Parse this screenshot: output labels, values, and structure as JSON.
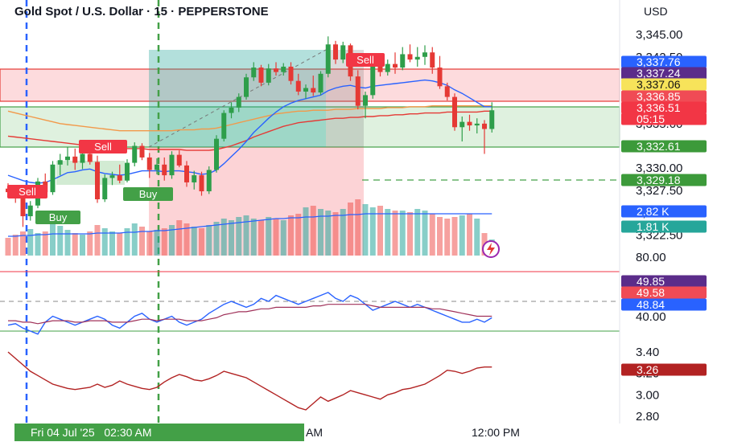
{
  "header": {
    "title": "Gold Spot / U.S. Dollar · 15 · PEPPERSTONE",
    "currency": "USD"
  },
  "chart_data": [
    {
      "type": "candlestick",
      "title": "Gold Spot / U.S. Dollar · 15 · PEPPERSTONE",
      "ylim": [
        3320.0,
        3346.0
      ],
      "y_ticks": [
        "3,345.00",
        "3,342.50",
        "3,340.00",
        "3,337.50",
        "3,335.00",
        "3,332.50",
        "3,330.00",
        "3,327.50",
        "3,325.00",
        "3,322.50"
      ],
      "candles": [
        {
          "o": 3327.7,
          "h": 3328.3,
          "l": 3326.9,
          "c": 3327.3
        },
        {
          "o": 3327.3,
          "h": 3328.0,
          "l": 3326.1,
          "c": 3326.8
        },
        {
          "o": 3326.8,
          "h": 3327.6,
          "l": 3323.4,
          "c": 3324.6
        },
        {
          "o": 3324.6,
          "h": 3326.3,
          "l": 3324.1,
          "c": 3325.8
        },
        {
          "o": 3325.8,
          "h": 3328.9,
          "l": 3325.5,
          "c": 3328.5
        },
        {
          "o": 3328.5,
          "h": 3329.4,
          "l": 3326.9,
          "c": 3327.3
        },
        {
          "o": 3327.3,
          "h": 3330.8,
          "l": 3327.0,
          "c": 3330.4
        },
        {
          "o": 3330.4,
          "h": 3331.6,
          "l": 3329.2,
          "c": 3330.9
        },
        {
          "o": 3330.9,
          "h": 3332.4,
          "l": 3330.3,
          "c": 3331.3
        },
        {
          "o": 3331.3,
          "h": 3332.2,
          "l": 3329.8,
          "c": 3330.6
        },
        {
          "o": 3330.6,
          "h": 3331.8,
          "l": 3329.9,
          "c": 3331.6
        },
        {
          "o": 3331.6,
          "h": 3331.9,
          "l": 3330.4,
          "c": 3330.7
        },
        {
          "o": 3330.7,
          "h": 3331.4,
          "l": 3326.1,
          "c": 3326.5
        },
        {
          "o": 3326.5,
          "h": 3329.3,
          "l": 3326.2,
          "c": 3328.9
        },
        {
          "o": 3328.9,
          "h": 3329.6,
          "l": 3328.1,
          "c": 3329.2
        },
        {
          "o": 3329.2,
          "h": 3330.4,
          "l": 3328.3,
          "c": 3328.6
        },
        {
          "o": 3328.6,
          "h": 3331.0,
          "l": 3328.4,
          "c": 3330.6
        },
        {
          "o": 3330.6,
          "h": 3332.9,
          "l": 3330.2,
          "c": 3332.5
        },
        {
          "o": 3332.5,
          "h": 3332.8,
          "l": 3330.9,
          "c": 3331.2
        },
        {
          "o": 3331.2,
          "h": 3331.7,
          "l": 3328.9,
          "c": 3329.8
        },
        {
          "o": 3329.8,
          "h": 3331.1,
          "l": 3329.3,
          "c": 3330.4
        },
        {
          "o": 3330.4,
          "h": 3331.2,
          "l": 3328.6,
          "c": 3329.2
        },
        {
          "o": 3329.2,
          "h": 3331.9,
          "l": 3328.8,
          "c": 3331.5
        },
        {
          "o": 3331.5,
          "h": 3332.0,
          "l": 3330.1,
          "c": 3330.3
        },
        {
          "o": 3330.3,
          "h": 3330.8,
          "l": 3327.9,
          "c": 3328.4
        },
        {
          "o": 3328.4,
          "h": 3329.7,
          "l": 3327.6,
          "c": 3329.2
        },
        {
          "o": 3329.2,
          "h": 3329.6,
          "l": 3326.9,
          "c": 3327.4
        },
        {
          "o": 3327.4,
          "h": 3330.2,
          "l": 3327.1,
          "c": 3329.8
        },
        {
          "o": 3329.8,
          "h": 3333.7,
          "l": 3329.5,
          "c": 3333.3
        },
        {
          "o": 3333.3,
          "h": 3336.5,
          "l": 3333.0,
          "c": 3336.2
        },
        {
          "o": 3336.2,
          "h": 3337.4,
          "l": 3335.6,
          "c": 3336.8
        },
        {
          "o": 3336.8,
          "h": 3338.4,
          "l": 3336.3,
          "c": 3338.0
        },
        {
          "o": 3338.0,
          "h": 3340.6,
          "l": 3337.7,
          "c": 3340.2
        },
        {
          "o": 3340.2,
          "h": 3341.9,
          "l": 3339.8,
          "c": 3341.3
        },
        {
          "o": 3341.3,
          "h": 3341.6,
          "l": 3339.2,
          "c": 3339.6
        },
        {
          "o": 3339.6,
          "h": 3341.7,
          "l": 3339.3,
          "c": 3341.2
        },
        {
          "o": 3341.2,
          "h": 3341.9,
          "l": 3340.4,
          "c": 3340.8
        },
        {
          "o": 3340.8,
          "h": 3341.8,
          "l": 3340.4,
          "c": 3341.4
        },
        {
          "o": 3341.4,
          "h": 3341.9,
          "l": 3339.4,
          "c": 3339.8
        },
        {
          "o": 3339.8,
          "h": 3340.6,
          "l": 3338.2,
          "c": 3338.6
        },
        {
          "o": 3338.6,
          "h": 3339.4,
          "l": 3337.8,
          "c": 3339.0
        },
        {
          "o": 3339.0,
          "h": 3340.4,
          "l": 3338.1,
          "c": 3338.5
        },
        {
          "o": 3338.5,
          "h": 3340.9,
          "l": 3338.2,
          "c": 3340.6
        },
        {
          "o": 3340.6,
          "h": 3344.8,
          "l": 3340.2,
          "c": 3343.9
        },
        {
          "o": 3343.9,
          "h": 3344.3,
          "l": 3341.7,
          "c": 3342.2
        },
        {
          "o": 3342.2,
          "h": 3344.2,
          "l": 3341.8,
          "c": 3343.8
        },
        {
          "o": 3343.8,
          "h": 3344.0,
          "l": 3339.8,
          "c": 3340.3
        },
        {
          "o": 3340.3,
          "h": 3341.0,
          "l": 3336.6,
          "c": 3337.0
        },
        {
          "o": 3337.0,
          "h": 3338.6,
          "l": 3335.6,
          "c": 3338.2
        },
        {
          "o": 3338.2,
          "h": 3342.4,
          "l": 3337.8,
          "c": 3342.0
        },
        {
          "o": 3342.0,
          "h": 3342.6,
          "l": 3340.3,
          "c": 3340.8
        },
        {
          "o": 3340.8,
          "h": 3342.2,
          "l": 3340.4,
          "c": 3341.7
        },
        {
          "o": 3341.7,
          "h": 3343.0,
          "l": 3340.6,
          "c": 3341.3
        },
        {
          "o": 3341.3,
          "h": 3343.6,
          "l": 3341.0,
          "c": 3342.8
        },
        {
          "o": 3342.8,
          "h": 3343.9,
          "l": 3341.9,
          "c": 3342.2
        },
        {
          "o": 3342.2,
          "h": 3343.6,
          "l": 3341.4,
          "c": 3342.5
        },
        {
          "o": 3342.5,
          "h": 3343.8,
          "l": 3341.6,
          "c": 3343.0
        },
        {
          "o": 3343.0,
          "h": 3343.6,
          "l": 3340.6,
          "c": 3341.3
        },
        {
          "o": 3341.3,
          "h": 3342.6,
          "l": 3338.9,
          "c": 3339.2
        },
        {
          "o": 3339.2,
          "h": 3339.6,
          "l": 3337.6,
          "c": 3338.0
        },
        {
          "o": 3338.0,
          "h": 3338.4,
          "l": 3334.2,
          "c": 3334.6
        },
        {
          "o": 3334.6,
          "h": 3335.8,
          "l": 3333.0,
          "c": 3335.2
        },
        {
          "o": 3335.2,
          "h": 3336.0,
          "l": 3334.2,
          "c": 3334.8
        },
        {
          "o": 3334.8,
          "h": 3335.6,
          "l": 3333.9,
          "c": 3335.0
        },
        {
          "o": 3335.0,
          "h": 3335.4,
          "l": 3331.6,
          "c": 3334.4
        },
        {
          "o": 3334.4,
          "h": 3337.4,
          "l": 3334.0,
          "c": 3336.5
        }
      ],
      "ema_slow": [
        3333.6,
        3333.5,
        3333.4,
        3333.3,
        3333.2,
        3333.1,
        3333.0,
        3332.9,
        3332.8,
        3332.7,
        3332.6,
        3332.5,
        3332.4,
        3332.3,
        3332.3,
        3332.2,
        3332.2,
        3332.2,
        3332.2,
        3332.1,
        3332.1,
        3332.1,
        3332.1,
        3332.1,
        3332.0,
        3332.0,
        3332.0,
        3332.0,
        3332.1,
        3332.3,
        3332.5,
        3332.8,
        3333.1,
        3333.5,
        3333.8,
        3334.1,
        3334.4,
        3334.7,
        3334.9,
        3335.1,
        3335.2,
        3335.3,
        3335.4,
        3335.5,
        3335.6,
        3335.6,
        3335.7,
        3335.7,
        3335.8,
        3335.8,
        3335.9,
        3335.9,
        3336.0,
        3336.0,
        3336.1,
        3336.1,
        3336.2,
        3336.2,
        3336.2,
        3336.3,
        3336.3,
        3336.3,
        3336.3,
        3336.3,
        3336.4,
        3336.4
      ],
      "ma_mid": [
        3336.4,
        3336.2,
        3336.0,
        3335.8,
        3335.6,
        3335.4,
        3335.2,
        3335.0,
        3334.9,
        3334.8,
        3334.7,
        3334.6,
        3334.5,
        3334.4,
        3334.3,
        3334.2,
        3334.2,
        3334.2,
        3334.2,
        3334.2,
        3334.2,
        3334.2,
        3334.2,
        3334.3,
        3334.3,
        3334.3,
        3334.4,
        3334.4,
        3334.5,
        3334.7,
        3334.9,
        3335.1,
        3335.3,
        3335.5,
        3335.7,
        3335.9,
        3336.1,
        3336.2,
        3336.3,
        3336.4,
        3336.4,
        3336.5,
        3336.5,
        3336.5,
        3336.6,
        3336.6,
        3336.6,
        3336.7,
        3336.7,
        3336.7,
        3336.7,
        3336.8,
        3336.8,
        3336.8,
        3336.9,
        3336.9,
        3336.9,
        3337.0,
        3337.0,
        3337.0,
        3337.0,
        3337.0,
        3337.0,
        3337.0,
        3337.0,
        3337.0
      ],
      "ema_fast": [
        3329.2,
        3328.9,
        3328.6,
        3328.4,
        3328.3,
        3328.4,
        3328.7,
        3329.1,
        3329.5,
        3329.6,
        3329.8,
        3329.9,
        3329.6,
        3329.4,
        3329.3,
        3329.2,
        3329.3,
        3329.5,
        3329.7,
        3329.7,
        3329.7,
        3329.6,
        3329.7,
        3329.7,
        3329.6,
        3329.5,
        3329.3,
        3329.4,
        3329.8,
        3330.5,
        3331.3,
        3332.1,
        3333.0,
        3334.0,
        3334.8,
        3335.6,
        3336.3,
        3336.9,
        3337.3,
        3337.6,
        3337.8,
        3338.0,
        3338.2,
        3338.7,
        3339.0,
        3339.2,
        3339.3,
        3339.1,
        3339.0,
        3339.2,
        3339.3,
        3339.4,
        3339.5,
        3339.6,
        3339.7,
        3339.8,
        3339.9,
        3339.8,
        3339.6,
        3339.3,
        3338.8,
        3338.4,
        3337.9,
        3337.4,
        3336.9,
        3336.9
      ]
    },
    {
      "type": "bar",
      "name": "volume",
      "values": [
        22,
        26,
        30,
        33,
        28,
        30,
        40,
        37,
        32,
        28,
        26,
        30,
        38,
        34,
        30,
        28,
        34,
        40,
        36,
        30,
        32,
        34,
        38,
        44,
        40,
        36,
        34,
        38,
        42,
        46,
        44,
        48,
        50,
        46,
        44,
        48,
        46,
        44,
        50,
        52,
        60,
        62,
        58,
        56,
        54,
        58,
        66,
        70,
        64,
        60,
        62,
        58,
        56,
        56,
        54,
        58,
        56,
        52,
        48,
        46,
        48,
        50,
        52,
        46,
        28,
        20
      ],
      "ma": [
        24,
        24,
        25,
        25,
        26,
        26,
        27,
        27,
        27,
        27,
        27,
        27,
        28,
        28,
        28,
        28,
        29,
        29,
        30,
        30,
        31,
        31,
        32,
        33,
        34,
        35,
        36,
        37,
        38,
        39,
        40,
        41,
        42,
        43,
        44,
        45,
        46,
        46,
        47,
        47,
        48,
        48,
        49,
        49,
        50,
        50,
        51,
        51,
        52,
        52,
        52,
        52,
        52,
        52,
        52,
        52,
        52,
        52,
        52,
        52,
        52,
        52,
        52,
        52,
        52,
        52
      ]
    },
    {
      "type": "line",
      "name": "oscillator",
      "y_ticks": [
        "80.00",
        "40.00"
      ],
      "series": [
        {
          "values": [
            44,
            45,
            42,
            40,
            38,
            46,
            50,
            48,
            46,
            44,
            46,
            48,
            50,
            48,
            44,
            42,
            46,
            50,
            52,
            48,
            46,
            48,
            50,
            46,
            44,
            46,
            48,
            52,
            55,
            58,
            60,
            58,
            56,
            58,
            62,
            60,
            64,
            62,
            60,
            58,
            60,
            62,
            64,
            66,
            62,
            60,
            64,
            62,
            58,
            54,
            56,
            58,
            60,
            58,
            56,
            58,
            56,
            54,
            52,
            50,
            48,
            46,
            46,
            48,
            46,
            49
          ]
        },
        {
          "values": [
            47,
            47,
            46,
            46,
            45,
            46,
            47,
            47,
            47,
            46,
            46,
            47,
            47,
            47,
            46,
            46,
            46,
            47,
            48,
            48,
            47,
            48,
            48,
            48,
            47,
            47,
            47,
            48,
            49,
            51,
            52,
            53,
            53,
            54,
            55,
            55,
            56,
            56,
            56,
            56,
            56,
            57,
            57,
            58,
            58,
            58,
            58,
            58,
            58,
            57,
            56,
            56,
            56,
            56,
            56,
            56,
            56,
            55,
            55,
            54,
            53,
            52,
            51,
            50,
            50,
            50
          ]
        }
      ]
    },
    {
      "type": "line",
      "name": "lower_indicator",
      "y_ticks": [
        "3.40",
        "3.20",
        "3.00",
        "2.80"
      ],
      "series": [
        {
          "values": [
            3.4,
            3.34,
            3.28,
            3.22,
            3.18,
            3.14,
            3.1,
            3.08,
            3.06,
            3.05,
            3.06,
            3.07,
            3.1,
            3.07,
            3.09,
            3.13,
            3.1,
            3.08,
            3.06,
            3.05,
            3.07,
            3.12,
            3.16,
            3.19,
            3.17,
            3.14,
            3.13,
            3.15,
            3.18,
            3.22,
            3.2,
            3.18,
            3.16,
            3.12,
            3.08,
            3.04,
            3.0,
            2.96,
            2.92,
            2.88,
            2.86,
            2.92,
            2.98,
            2.94,
            2.97,
            3.0,
            3.04,
            3.02,
            3.0,
            2.98,
            2.96,
            3.0,
            3.02,
            3.05,
            3.06,
            3.08,
            3.1,
            3.14,
            3.18,
            3.23,
            3.22,
            3.2,
            3.22,
            3.25,
            3.26,
            3.26
          ]
        }
      ]
    }
  ],
  "axis_badges": [
    {
      "text": "3,337.76",
      "bg": "#2962ff"
    },
    {
      "text": "3,337.24",
      "bg": "#5b2c8a"
    },
    {
      "text": "3,337.06",
      "bg": "#f7e35a",
      "fg": "#111111"
    },
    {
      "text": "3,336.85",
      "bg": "#f04b55"
    },
    {
      "text": "3,336.51",
      "bg": "#f23645"
    },
    {
      "text": "05:15",
      "bg": "#f23645"
    },
    {
      "text": "3,332.61",
      "bg": "#3c9a3a"
    },
    {
      "text": "3,329.18",
      "bg": "#3c9a3a"
    },
    {
      "text": "2.82 K",
      "bg": "#2962ff"
    },
    {
      "text": "1.81 K",
      "bg": "#26a69a"
    },
    {
      "text": "49.85",
      "bg": "#5b2c8a"
    },
    {
      "text": "49.58",
      "bg": "#f04b55"
    },
    {
      "text": "48.84",
      "bg": "#2962ff"
    },
    {
      "text": "3.26",
      "bg": "#b22222"
    }
  ],
  "signals": {
    "sell": "Sell",
    "buy": "Buy"
  },
  "time_axis": {
    "cursor_label": "Fri 04 Jul '25   02:30 AM",
    "labels": [
      "AM",
      "12:00 PM"
    ]
  },
  "colors": {
    "up": "#26a69a",
    "down": "#ef5350",
    "ema_blue": "#2962ff",
    "ema_red": "#e53935",
    "ma_line": "#f2994a"
  }
}
